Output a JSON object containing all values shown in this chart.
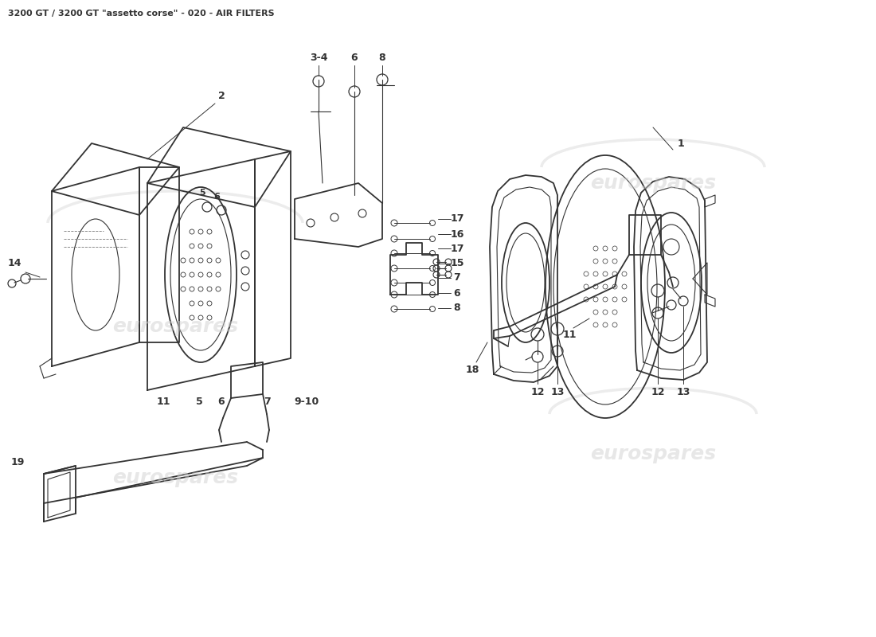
{
  "title": "3200 GT / 3200 GT \"assetto corse\" - 020 - AIR FILTERS",
  "title_fontsize": 8,
  "title_color": "#333333",
  "background_color": "#ffffff",
  "line_color": "#333333",
  "watermark_color": "#d0d0d0",
  "watermark_text": "eurospares",
  "fig_width": 11.0,
  "fig_height": 8.0
}
